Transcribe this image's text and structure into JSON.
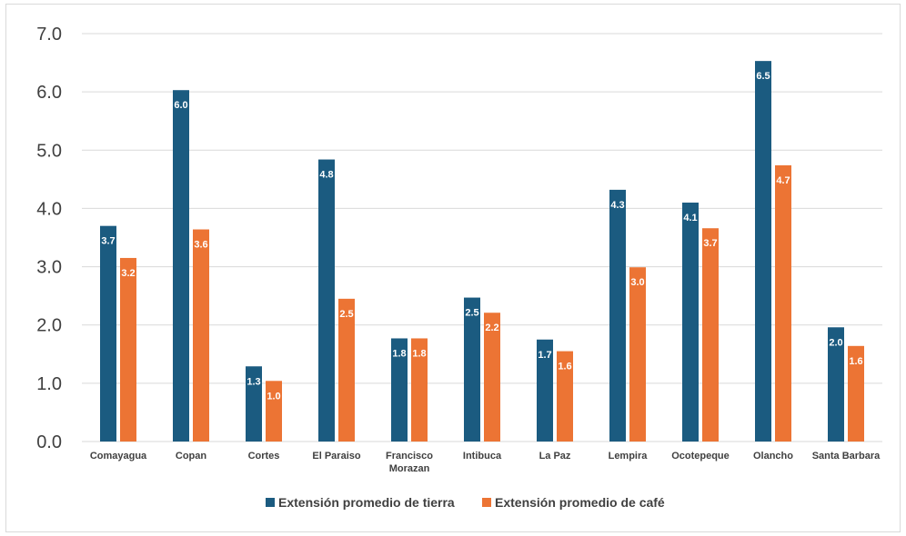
{
  "chart_data": {
    "type": "bar",
    "title": "",
    "xlabel": "",
    "ylabel": "",
    "ylim": [
      0,
      7
    ],
    "yticks": [
      "0.0",
      "1.0",
      "2.0",
      "3.0",
      "4.0",
      "5.0",
      "6.0",
      "7.0"
    ],
    "grid": true,
    "legend_position": "bottom",
    "categories": [
      [
        "Comayagua"
      ],
      [
        "Copan"
      ],
      [
        "Cortes"
      ],
      [
        "El Paraiso"
      ],
      [
        "Francisco",
        "Morazan"
      ],
      [
        "Intibuca"
      ],
      [
        "La Paz"
      ],
      [
        "Lempira"
      ],
      [
        "Ocotepeque"
      ],
      [
        "Olancho"
      ],
      [
        "Santa Barbara"
      ]
    ],
    "series": [
      {
        "name": "Extensión promedio de tierra",
        "color": "#1b5b80",
        "values": [
          3.7,
          6.03,
          1.29,
          4.84,
          1.77,
          2.47,
          1.75,
          4.32,
          4.1,
          6.53,
          1.96
        ],
        "labels": [
          "3.7",
          "6.0",
          "1.3",
          "4.8",
          "1.8",
          "2.5",
          "1.7",
          "4.3",
          "4.1",
          "6.5",
          "2.0"
        ]
      },
      {
        "name": "Extensión promedio de café",
        "color": "#ec7434",
        "values": [
          3.15,
          3.64,
          1.04,
          2.45,
          1.77,
          2.21,
          1.55,
          2.99,
          3.66,
          4.74,
          1.64
        ],
        "labels": [
          "3.2",
          "3.6",
          "1.0",
          "2.5",
          "1.8",
          "2.2",
          "1.6",
          "3.0",
          "3.7",
          "4.7",
          "1.6"
        ]
      }
    ]
  }
}
